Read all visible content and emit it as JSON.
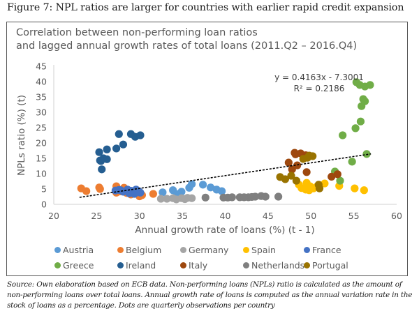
{
  "figure_title": "Figure 7: NPL ratios are larger for countries with earlier rapid credit expansion",
  "caption": "Source: Own elaboration based on ECB data. Non-performing loans (NPLs) ratio is calculated as the amount of non-performing loans over total loans. Annual growth rate of loans is computed as the annual variation rate in the stock of loans as a percentage. Dots are quarterly observations per country",
  "chart_data": {
    "type": "scatter",
    "title": "Correlation between non-performing loan ratios",
    "subtitle": "and lagged annual growth rates of total loans (2011.Q2 – 2016.Q4)",
    "xlabel": "Annual growth rate of loans (%) (t - 1)",
    "ylabel": "NPLs ratio (%) (t)",
    "xlim": [
      20,
      60
    ],
    "ylim": [
      0,
      45
    ],
    "xticks": [
      "20",
      "25",
      "30",
      "35",
      "40",
      "45",
      "50",
      "55",
      "60"
    ],
    "yticks": [
      "0",
      "5",
      "10",
      "15",
      "20",
      "25",
      "30",
      "35",
      "40",
      "45"
    ],
    "grid": false,
    "legend_position": "bottom",
    "trendline": {
      "equation": "y = 0.4163x - 7.3001",
      "r_squared": "R² = 0.2186",
      "slope": 0.4163,
      "intercept": -7.3001,
      "x_range": [
        23,
        57
      ],
      "style": "dashed",
      "color": "#000000"
    },
    "series": [
      {
        "name": "Austria",
        "color": "#5B9BD5",
        "points": [
          [
            32.7,
            3.9
          ],
          [
            33.9,
            4.6
          ],
          [
            34.9,
            4.1
          ],
          [
            35.8,
            5.4
          ],
          [
            36.1,
            6.6
          ],
          [
            37.4,
            6.4
          ],
          [
            38.3,
            5.5
          ],
          [
            39.0,
            4.8
          ],
          [
            39.6,
            4.3
          ],
          [
            34.4,
            3.3
          ]
        ]
      },
      {
        "name": "Belgium",
        "color": "#ED7D31",
        "points": [
          [
            23.2,
            5.2
          ],
          [
            23.8,
            4.3
          ],
          [
            25.3,
            5.5
          ],
          [
            25.4,
            5.0
          ],
          [
            27.3,
            5.9
          ],
          [
            27.3,
            3.8
          ],
          [
            28.2,
            5.4
          ],
          [
            28.5,
            3.7
          ],
          [
            30.3,
            3.0
          ],
          [
            31.6,
            3.4
          ],
          [
            27.7,
            4.2
          ],
          [
            29.9,
            3.6
          ],
          [
            29.0,
            3.2
          ],
          [
            30.0,
            2.6
          ]
        ]
      },
      {
        "name": "Germany",
        "color": "#A5A5A5",
        "points": [
          [
            32.5,
            1.8
          ],
          [
            33.2,
            1.8
          ],
          [
            33.9,
            2.0
          ],
          [
            34.9,
            2.0
          ],
          [
            35.6,
            2.1
          ],
          [
            36.1,
            2.0
          ],
          [
            35.3,
            1.7
          ],
          [
            34.3,
            1.6
          ]
        ]
      },
      {
        "name": "Spain",
        "color": "#FFC000",
        "points": [
          [
            48.6,
            6.4
          ],
          [
            49.5,
            7.0
          ],
          [
            49.9,
            5.9
          ],
          [
            49.4,
            4.8
          ],
          [
            50.3,
            5.2
          ],
          [
            51.6,
            6.8
          ],
          [
            53.3,
            6.0
          ],
          [
            55.1,
            5.2
          ],
          [
            48.9,
            5.3
          ],
          [
            50.7,
            5.8
          ],
          [
            56.2,
            4.6
          ],
          [
            49.8,
            4.6
          ]
        ]
      },
      {
        "name": "France",
        "color": "#4472C4",
        "points": [
          [
            27.2,
            4.5
          ],
          [
            27.6,
            4.7
          ],
          [
            28.1,
            4.1
          ],
          [
            28.6,
            4.8
          ],
          [
            29.0,
            4.4
          ],
          [
            29.3,
            3.9
          ],
          [
            29.6,
            4.8
          ],
          [
            29.9,
            4.3
          ],
          [
            28.8,
            3.6
          ],
          [
            30.1,
            3.8
          ],
          [
            27.8,
            4.6
          ],
          [
            29.4,
            3.4
          ]
        ]
      },
      {
        "name": "Greece",
        "color": "#70AD47",
        "points": [
          [
            55.3,
            39.8
          ],
          [
            55.7,
            38.9
          ],
          [
            56.3,
            38.4
          ],
          [
            56.9,
            38.9
          ],
          [
            56.1,
            34.3
          ],
          [
            56.3,
            33.6
          ],
          [
            55.9,
            32.0
          ],
          [
            55.8,
            27.0
          ],
          [
            55.2,
            24.8
          ],
          [
            53.7,
            22.5
          ],
          [
            56.5,
            16.4
          ],
          [
            54.8,
            13.9
          ],
          [
            52.8,
            10.7
          ],
          [
            53.4,
            7.7
          ]
        ]
      },
      {
        "name": "Ireland",
        "color": "#255E91",
        "points": [
          [
            27.6,
            22.9
          ],
          [
            29.0,
            22.9
          ],
          [
            29.5,
            22.0
          ],
          [
            30.1,
            22.5
          ],
          [
            28.1,
            19.5
          ],
          [
            27.3,
            18.2
          ],
          [
            26.2,
            17.9
          ],
          [
            25.3,
            17.0
          ],
          [
            25.4,
            14.3
          ],
          [
            25.8,
            15.0
          ],
          [
            26.2,
            14.7
          ],
          [
            25.6,
            11.4
          ],
          [
            25.5,
            14.1
          ]
        ]
      },
      {
        "name": "Italy",
        "color": "#9E480E",
        "points": [
          [
            48.1,
            16.8
          ],
          [
            48.2,
            16.3
          ],
          [
            49.4,
            16.0
          ],
          [
            47.4,
            13.6
          ],
          [
            47.8,
            11.4
          ],
          [
            48.4,
            12.7
          ],
          [
            49.5,
            10.5
          ],
          [
            52.4,
            9.0
          ],
          [
            53.1,
            9.8
          ],
          [
            48.8,
            16.6
          ]
        ]
      },
      {
        "name": "Netherlands",
        "color": "#7F7F7F",
        "points": [
          [
            37.7,
            2.2
          ],
          [
            39.8,
            2.2
          ],
          [
            40.8,
            2.3
          ],
          [
            41.7,
            2.3
          ],
          [
            42.7,
            2.3
          ],
          [
            43.5,
            2.5
          ],
          [
            44.2,
            2.7
          ],
          [
            44.7,
            2.5
          ],
          [
            46.2,
            2.5
          ],
          [
            40.3,
            2.2
          ],
          [
            42.2,
            2.3
          ],
          [
            43.1,
            2.4
          ]
        ]
      },
      {
        "name": "Portugal",
        "color": "#997300",
        "points": [
          [
            49.8,
            15.9
          ],
          [
            50.2,
            15.7
          ],
          [
            49.1,
            14.8
          ],
          [
            46.4,
            8.9
          ],
          [
            47.0,
            8.2
          ],
          [
            47.7,
            9.3
          ],
          [
            48.3,
            7.7
          ],
          [
            50.9,
            6.4
          ],
          [
            51.0,
            5.2
          ],
          [
            49.6,
            15.2
          ]
        ]
      }
    ]
  }
}
